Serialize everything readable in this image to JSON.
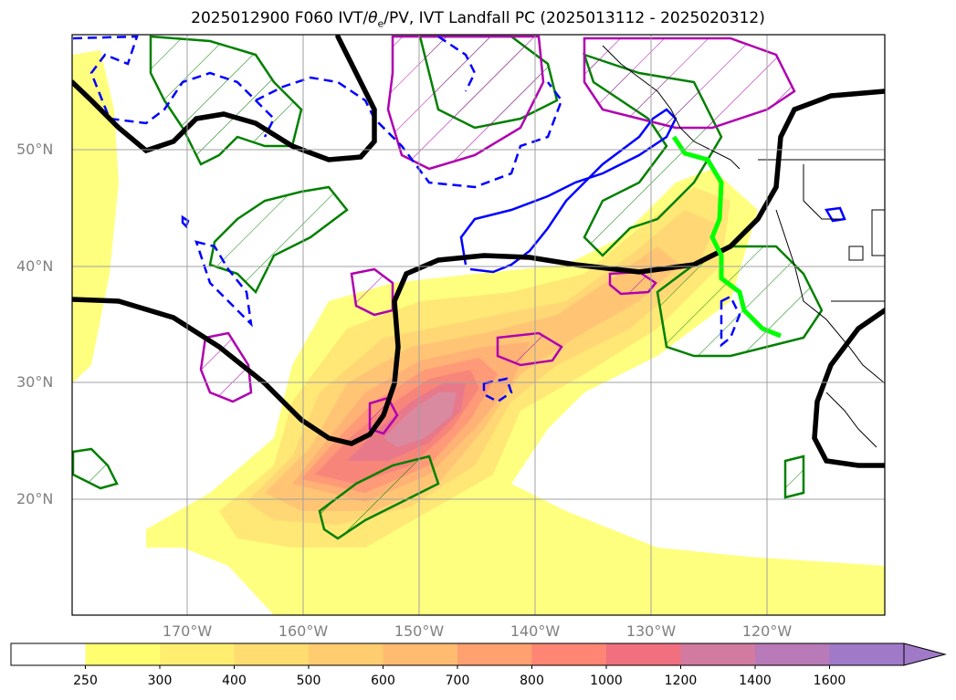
{
  "title": "2025012900 F060 IVT/θe/PV, IVT Landfall PC (2025013112 - 2025020312)",
  "title_parts": {
    "prefix": "2025012900 F060 IVT/",
    "theta": "θ",
    "sub": "e",
    "suffix": "/PV, IVT Landfall PC (2025013112 - 2025020312)"
  },
  "lat_labels": [
    "50°N",
    "40°N",
    "30°N",
    "20°N"
  ],
  "lon_labels": [
    "170°W",
    "160°W",
    "150°W",
    "140°W",
    "130°W",
    "120°W"
  ],
  "colorbar": {
    "levels": [
      "250",
      "300",
      "400",
      "500",
      "600",
      "700",
      "800",
      "1000",
      "1200",
      "1400",
      "1600"
    ],
    "colors": [
      "#ffffff",
      "#ffff70",
      "#ffee70",
      "#ffdd70",
      "#ffcc70",
      "#ffbb70",
      "#ffa070",
      "#ff8575",
      "#f07080",
      "#d27aa0",
      "#b87ab8",
      "#a07ac8"
    ]
  },
  "colors": {
    "ivt_peak": "#d98aa0",
    "theta_e_contour": "#000000",
    "pv_pos": "#008000",
    "pv_neg": "#0000ff",
    "pv_mag": "#b000b0",
    "landfall_pc": "#00ff00",
    "grid": "#a0a0a0"
  }
}
